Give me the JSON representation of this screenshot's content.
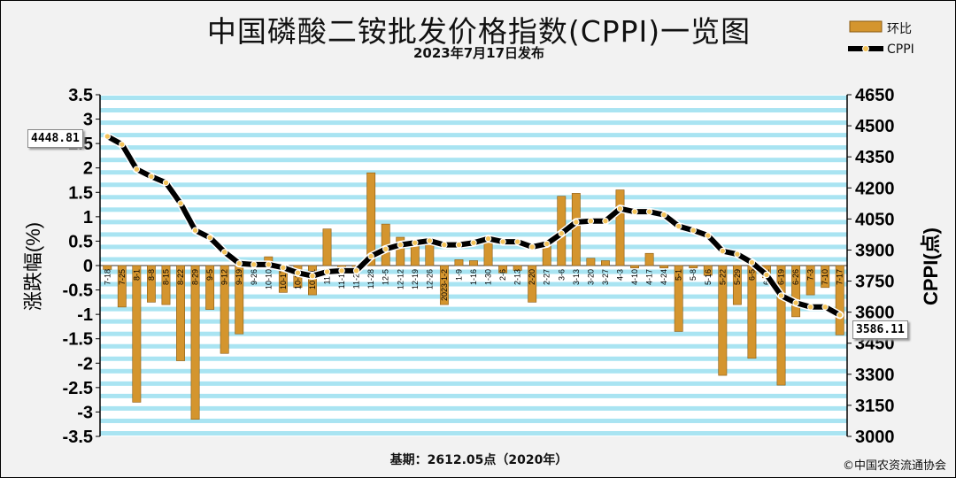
{
  "header": {
    "title": "中国磷酸二铵批发价格指数(CPPI)一览图",
    "subtitle": "2023年7月17日发布"
  },
  "legend": {
    "bar_label": "环比",
    "line_label": "CPPI"
  },
  "footer": {
    "basis": "基期：2612.05点（2020年）",
    "copyright": "©中国农资流通协会"
  },
  "callouts": {
    "first_value": "4448.81",
    "last_value": "3586.11"
  },
  "colors": {
    "bar": "#d4952e",
    "line": "#000000",
    "marker": "#f3c35a",
    "stripe": "#a9e4f2",
    "background": "#ffffff"
  },
  "chart_data": {
    "type": "bar",
    "y1label": "涨跌幅(%)",
    "y2label": "CPPI(点)",
    "y1lim": [
      -3.5,
      3.5
    ],
    "y2lim": [
      3000,
      4650
    ],
    "y1ticks": [
      "3.5",
      "3",
      "2.5",
      "2",
      "1.5",
      "1",
      "0.5",
      "0",
      "-0.5",
      "-1",
      "-1.5",
      "-2",
      "-2.5",
      "-3",
      "-3.5"
    ],
    "y2ticks": [
      "4650",
      "4500",
      "4350",
      "4200",
      "4050",
      "3900",
      "3750",
      "3600",
      "3450",
      "3300",
      "3150",
      "3000"
    ],
    "categories": [
      "7-18",
      "7-25",
      "8-1",
      "8-8",
      "8-15",
      "8-22",
      "8-29",
      "9-5",
      "9-12",
      "9-19",
      "9-26",
      "10-10",
      "10-17",
      "10-24",
      "10-31",
      "11-7",
      "11-14",
      "11-21",
      "11-28",
      "12-5",
      "12-12",
      "12-19",
      "12-26",
      "2023-1-2",
      "1-9",
      "1-16",
      "1-30",
      "2-6",
      "2-13",
      "2-20",
      "2-27",
      "3-6",
      "3-13",
      "3-20",
      "3-27",
      "4-3",
      "4-10",
      "4-17",
      "4-24",
      "5-1",
      "5-8",
      "5-16",
      "5-22",
      "5-29",
      "6-5",
      "6-12",
      "6-19",
      "6-26",
      "7-3",
      "7-10",
      "7-17"
    ],
    "series": [
      {
        "name": "环比",
        "type": "bar",
        "values": [
          -0.08,
          -0.85,
          -2.8,
          -0.75,
          -0.8,
          -1.95,
          -3.15,
          -0.9,
          -1.8,
          -1.4,
          -0.05,
          0.18,
          -0.55,
          -0.45,
          -0.6,
          0.75,
          -0.05,
          -0.1,
          1.9,
          0.85,
          0.58,
          0.4,
          0.45,
          -0.8,
          0.12,
          0.1,
          0.5,
          -0.15,
          -0.1,
          -0.75,
          0.45,
          1.42,
          1.48,
          0.15,
          0.1,
          1.55,
          -0.05,
          0.25,
          -0.05,
          -1.35,
          -0.05,
          -0.2,
          -2.25,
          -0.8,
          -1.9,
          -0.25,
          -2.45,
          -1.05,
          -0.6,
          -0.45,
          -1.42
        ]
      },
      {
        "name": "CPPI",
        "type": "line",
        "values": [
          4448.81,
          4410,
          4290,
          4255,
          4225,
          4125,
          3995,
          3960,
          3890,
          3835,
          3830,
          3830,
          3815,
          3790,
          3775,
          3795,
          3800,
          3800,
          3870,
          3905,
          3925,
          3935,
          3945,
          3925,
          3925,
          3935,
          3955,
          3940,
          3940,
          3915,
          3930,
          3980,
          4035,
          4040,
          4040,
          4100,
          4085,
          4085,
          4070,
          4015,
          3995,
          3970,
          3895,
          3880,
          3840,
          3780,
          3680,
          3645,
          3625,
          3625,
          3586.11
        ]
      }
    ]
  }
}
